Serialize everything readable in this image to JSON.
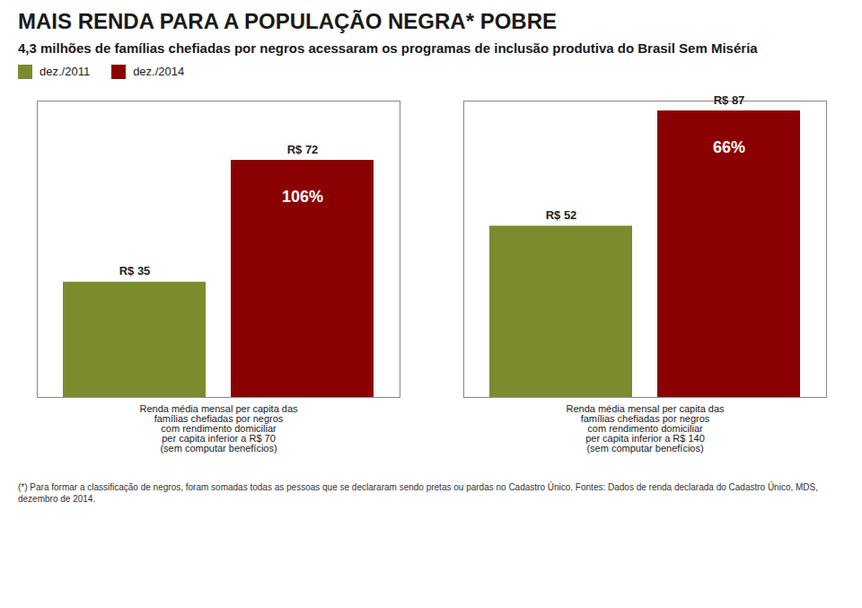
{
  "chart_data": {
    "type": "bar",
    "title": "MAIS RENDA PARA A POPULAÇÃO NEGRA* POBRE",
    "subtitle": "4,3 milhões de famílias chefiadas por negros acessaram os programas de inclusão produtiva do Brasil Sem Miséria",
    "categories": [
      "Renda média mensal per capita das\nfamílias chefiadas por negros\ncom rendimento domiciliar\nper capita inferior a R$ 70\n(sem computar benefícios)",
      "Renda média mensal per capita das\nfamílias chefiadas por negros\ncom rendimento domiciliar\nper capita inferior a R$ 140\n(sem computar benefícios)"
    ],
    "series": [
      {
        "name": "dez./2011",
        "color": "#7a8c2e",
        "values": [
          35,
          52
        ],
        "value_labels": [
          "R$ 35",
          "R$ 52"
        ]
      },
      {
        "name": "dez./2014",
        "color": "#8b0000",
        "values": [
          72,
          87
        ],
        "value_labels": [
          "R$ 72",
          "R$ 87"
        ]
      }
    ],
    "annotations": [
      {
        "text": "106%",
        "category": 0
      },
      {
        "text": "66%",
        "category": 1
      }
    ],
    "ylim": [
      0,
      90
    ],
    "tick_labels": "x",
    "data_labels": true,
    "legend": "top-left",
    "grid": false,
    "caption": "(*) Para formar a classificação de negros, foram somadas todas as pessoas que se declararam sendo pretas ou pardas no Cadastro Único. Fontes: Dados de renda declarada do Cadastro Único, MDS, dezembro de 2014."
  }
}
